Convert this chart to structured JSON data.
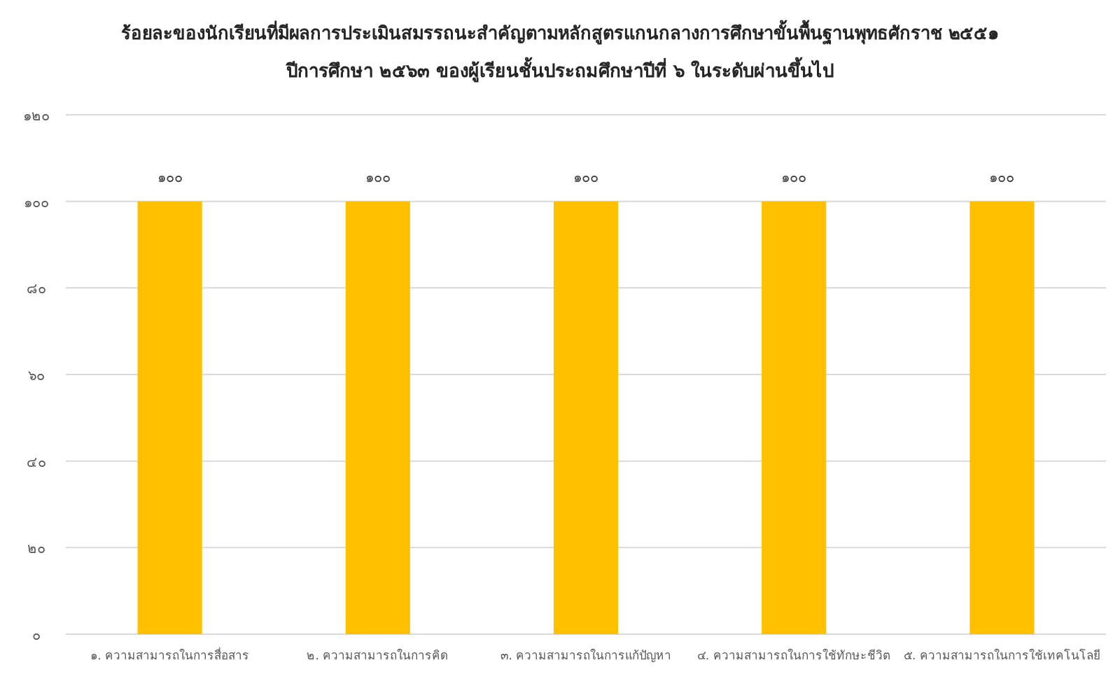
{
  "chart_data": {
    "type": "bar",
    "title": "ร้อยละของนักเรียนที่มีผลการประเมินสมรรถนะสำคัญตามหลักสูตรแกนกลางการศึกษาขั้นพื้นฐานพุทธศักราช ๒๕๕๑",
    "subtitle": "ปีการศึกษา ๒๕๖๓ ของผู้เรียนชั้นประถมศึกษาปีที่ ๖ ในระดับผ่านขึ้นไป",
    "categories": [
      "๑. ความสามารถในการสื่อสาร",
      "๒. ความสามารถในการคิด",
      "๓. ความสามารถในการแก้ปัญหา",
      "๔. ความสามารถในการใช้ทักษะชีวิต",
      "๕. ความสามารถในการใช้เทคโนโลยี"
    ],
    "values": [
      100,
      100,
      100,
      100,
      100
    ],
    "color": "#ffc000",
    "value_labels": [
      "๑๐๐",
      "๑๐๐",
      "๑๐๐",
      "๑๐๐",
      "๑๐๐"
    ],
    "ylim": [
      0,
      120
    ],
    "yticks": [
      {
        "value": 0,
        "label": "๐"
      },
      {
        "value": 20,
        "label": "๒๐"
      },
      {
        "value": 40,
        "label": "๔๐"
      },
      {
        "value": 60,
        "label": "๖๐"
      },
      {
        "value": 80,
        "label": "๘๐"
      },
      {
        "value": 100,
        "label": "๑๐๐"
      },
      {
        "value": 120,
        "label": "๑๒๐"
      }
    ],
    "grid": "y"
  }
}
